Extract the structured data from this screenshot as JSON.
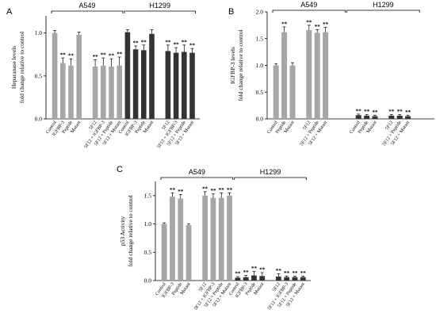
{
  "chart_data": [
    {
      "panel": "A",
      "type": "bar",
      "ylabel": [
        "Heparanase levels",
        "fold change relative to control"
      ],
      "ylim": [
        0,
        1.2
      ],
      "yticks": [
        0,
        0.5,
        1.0
      ],
      "ytick_labels": [
        "0.0",
        "0.5",
        "1.0"
      ],
      "groups": [
        {
          "label": "A549",
          "from": 0,
          "to": 8
        },
        {
          "label": "H1299",
          "from": 9,
          "to": 17
        }
      ],
      "categories": [
        "Control",
        "IGFBP-3",
        "Peptide",
        "Mutant",
        "5F12",
        "5F12 + IGFBP-3",
        "5F12 + Peptide",
        "5F12 + Mutant",
        "Control",
        "IGFBP-3",
        "Peptide",
        "Mutant",
        "5F12",
        "5F12 + IGFBP-3",
        "5F12 + Peptide",
        "5F12 + Mutant"
      ],
      "slots": [
        0,
        1,
        2,
        3,
        5,
        6,
        7,
        8,
        9,
        10,
        11,
        12,
        14,
        15,
        16,
        17
      ],
      "values": [
        1.0,
        0.65,
        0.62,
        0.98,
        0.61,
        0.62,
        0.61,
        0.62,
        1.01,
        0.81,
        0.8,
        0.99,
        0.79,
        0.77,
        0.78,
        0.77
      ],
      "errors": [
        0.03,
        0.06,
        0.08,
        0.03,
        0.08,
        0.09,
        0.09,
        0.1,
        0.03,
        0.04,
        0.06,
        0.05,
        0.07,
        0.06,
        0.08,
        0.05
      ],
      "significance": [
        "",
        "**",
        "**",
        "",
        "**",
        "**",
        "**",
        "**",
        "",
        "**",
        "**",
        "",
        "**",
        "**",
        "**",
        "**"
      ],
      "colors": [
        "#a6a6a6",
        "#a6a6a6",
        "#a6a6a6",
        "#a6a6a6",
        "#a6a6a6",
        "#a6a6a6",
        "#a6a6a6",
        "#a6a6a6",
        "#333333",
        "#333333",
        "#333333",
        "#333333",
        "#333333",
        "#333333",
        "#333333",
        "#333333"
      ]
    },
    {
      "panel": "B",
      "type": "bar",
      "ylabel": [
        "IGFBP-3 levels",
        "fold change relative to control"
      ],
      "ylim": [
        0,
        2.0
      ],
      "yticks": [
        0,
        0.5,
        1.0,
        1.5,
        2.0
      ],
      "ytick_labels": [
        "0.0",
        "0.5",
        "1.0",
        "1.5",
        "2.0"
      ],
      "groups": [
        {
          "label": "A549",
          "from": 0,
          "to": 8
        },
        {
          "label": "H1299",
          "from": 9,
          "to": 17
        }
      ],
      "categories": [
        "Control",
        "Peptide",
        "Mutant",
        "5F12",
        "5F12 + Peptide",
        "5F12 + Mutant",
        "Control",
        "Peptide",
        "Mutant",
        "5F12",
        "5F12 + Peptide",
        "5F12 + Mutant"
      ],
      "slots": [
        0,
        1,
        2,
        4,
        5,
        6,
        10,
        11,
        12,
        14,
        15,
        16
      ],
      "values": [
        1.0,
        1.62,
        1.0,
        1.66,
        1.61,
        1.62,
        0.07,
        0.06,
        0.05,
        0.06,
        0.06,
        0.05
      ],
      "errors": [
        0.03,
        0.1,
        0.05,
        0.09,
        0.06,
        0.09,
        0.02,
        0.02,
        0.02,
        0.02,
        0.02,
        0.02
      ],
      "significance": [
        "",
        "**",
        "",
        "**",
        "**",
        "**",
        "**",
        "**",
        "**",
        "**",
        "**",
        "**"
      ],
      "colors": [
        "#a6a6a6",
        "#a6a6a6",
        "#a6a6a6",
        "#a6a6a6",
        "#a6a6a6",
        "#a6a6a6",
        "#333333",
        "#333333",
        "#333333",
        "#333333",
        "#333333",
        "#333333"
      ]
    },
    {
      "panel": "C",
      "type": "bar",
      "ylabel": [
        "p53 Activity",
        "fold change relative to control"
      ],
      "ylim": [
        0,
        1.75
      ],
      "yticks": [
        0,
        0.5,
        1.0,
        1.5
      ],
      "ytick_labels": [
        "0.0",
        "0.5",
        "1.0",
        "1.5"
      ],
      "groups": [
        {
          "label": "A549",
          "from": 0,
          "to": 8
        },
        {
          "label": "H1299",
          "from": 9,
          "to": 17
        }
      ],
      "categories": [
        "Control",
        "IGFBP-3",
        "Peptide",
        "Mutant",
        "5F12",
        "5F12 + IGFBP-3",
        "5F12 + Peptide",
        "5F12 + Mutant",
        "Control",
        "IGFBP-3",
        "Peptide",
        "Mutant",
        "5F12",
        "5F12 + IGFBP-3",
        "5F12 + Peptide",
        "5F12 + Mutant"
      ],
      "slots": [
        0,
        1,
        2,
        3,
        5,
        6,
        7,
        8,
        9,
        10,
        11,
        12,
        14,
        15,
        16,
        17
      ],
      "values": [
        1.0,
        1.48,
        1.45,
        0.98,
        1.5,
        1.46,
        1.46,
        1.5,
        0.05,
        0.06,
        0.09,
        0.08,
        0.07,
        0.06,
        0.06,
        0.06
      ],
      "errors": [
        0.02,
        0.07,
        0.07,
        0.02,
        0.07,
        0.07,
        0.09,
        0.05,
        0.02,
        0.03,
        0.07,
        0.06,
        0.05,
        0.02,
        0.02,
        0.02
      ],
      "significance": [
        "",
        "**",
        "**",
        "",
        "**",
        "**",
        "**",
        "**",
        "**",
        "**",
        "**",
        "**",
        "**",
        "**",
        "**",
        "**"
      ],
      "colors": [
        "#a6a6a6",
        "#a6a6a6",
        "#a6a6a6",
        "#a6a6a6",
        "#a6a6a6",
        "#a6a6a6",
        "#a6a6a6",
        "#a6a6a6",
        "#333333",
        "#333333",
        "#333333",
        "#333333",
        "#333333",
        "#333333",
        "#333333",
        "#333333"
      ]
    }
  ]
}
